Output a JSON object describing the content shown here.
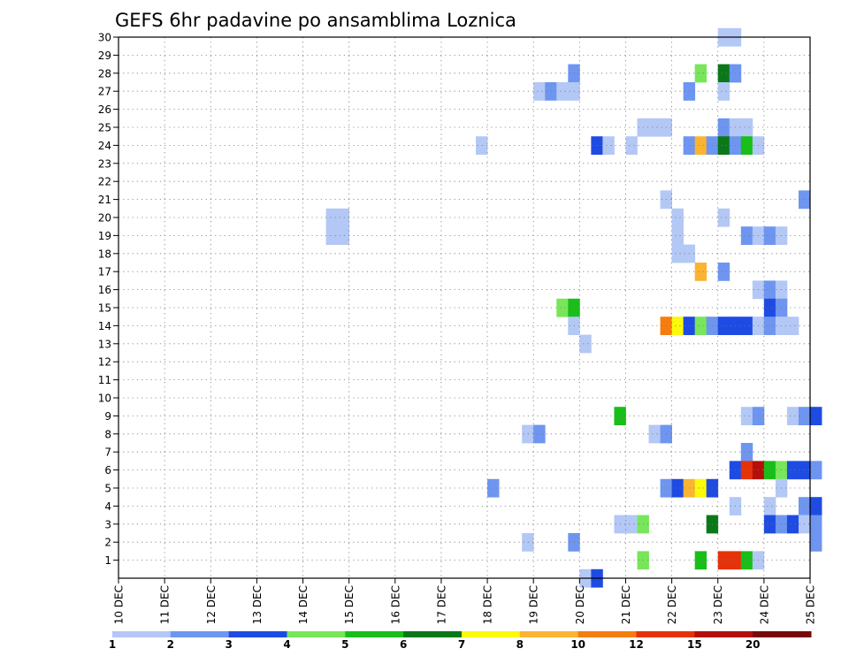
{
  "chart_data": {
    "type": "heatmap",
    "title": "GEFS 6hr padavine po ansamblima Loznica",
    "xlabel": "",
    "ylabel": "",
    "x_start": "10 DEC",
    "x_end": "25 DEC",
    "x_step_hours": 6,
    "x_ticks": [
      "10 DEC",
      "11 DEC",
      "12 DEC",
      "13 DEC",
      "14 DEC",
      "15 DEC",
      "16 DEC",
      "17 DEC",
      "18 DEC",
      "19 DEC",
      "20 DEC",
      "21 DEC",
      "22 DEC",
      "23 DEC",
      "24 DEC",
      "25 DEC"
    ],
    "y_ticks": [
      "1",
      "2",
      "3",
      "4",
      "5",
      "6",
      "7",
      "8",
      "9",
      "10",
      "11",
      "12",
      "13",
      "14",
      "15",
      "16",
      "17",
      "18",
      "19",
      "20",
      "21",
      "22",
      "23",
      "24",
      "25",
      "26",
      "27",
      "28",
      "29",
      "30"
    ],
    "ylim": [
      0,
      30
    ],
    "grid": true,
    "legend_placement": "bottom",
    "color_scale": {
      "colors": [
        "#b4c8f5",
        "#6e96f0",
        "#1e4be1",
        "#78e65a",
        "#19be19",
        "#0a7819",
        "#fafa0a",
        "#fab432",
        "#f57d0f",
        "#e6320a",
        "#b40f0a",
        "#780a0a"
      ],
      "labels": [
        "1",
        "2",
        "3",
        "4",
        "5",
        "6",
        "7",
        "8",
        "10",
        "12",
        "15",
        "20"
      ]
    },
    "cells": [
      {
        "x": "23 DEC 00Z",
        "y": 30,
        "c": 0
      },
      {
        "x": "23 DEC 06Z",
        "y": 30,
        "c": 0
      },
      {
        "x": "19 DEC 18Z",
        "y": 28,
        "c": 1
      },
      {
        "x": "22 DEC 12Z",
        "y": 28,
        "c": 3
      },
      {
        "x": "23 DEC 00Z",
        "y": 28,
        "c": 5
      },
      {
        "x": "23 DEC 06Z",
        "y": 28,
        "c": 1
      },
      {
        "x": "19 DEC 00Z",
        "y": 27,
        "c": 0
      },
      {
        "x": "19 DEC 06Z",
        "y": 27,
        "c": 1
      },
      {
        "x": "19 DEC 12Z",
        "y": 27,
        "c": 0
      },
      {
        "x": "19 DEC 18Z",
        "y": 27,
        "c": 0
      },
      {
        "x": "22 DEC 06Z",
        "y": 27,
        "c": 1
      },
      {
        "x": "23 DEC 00Z",
        "y": 27,
        "c": 0
      },
      {
        "x": "21 DEC 06Z",
        "y": 25,
        "c": 0
      },
      {
        "x": "21 DEC 12Z",
        "y": 25,
        "c": 0
      },
      {
        "x": "21 DEC 18Z",
        "y": 25,
        "c": 0
      },
      {
        "x": "23 DEC 00Z",
        "y": 25,
        "c": 1
      },
      {
        "x": "23 DEC 06Z",
        "y": 25,
        "c": 0
      },
      {
        "x": "23 DEC 12Z",
        "y": 25,
        "c": 0
      },
      {
        "x": "17 DEC 18Z",
        "y": 24,
        "c": 0
      },
      {
        "x": "20 DEC 06Z",
        "y": 24,
        "c": 2
      },
      {
        "x": "20 DEC 12Z",
        "y": 24,
        "c": 0
      },
      {
        "x": "21 DEC 00Z",
        "y": 24,
        "c": 0
      },
      {
        "x": "22 DEC 06Z",
        "y": 24,
        "c": 1
      },
      {
        "x": "22 DEC 12Z",
        "y": 24,
        "c": 7
      },
      {
        "x": "22 DEC 18Z",
        "y": 24,
        "c": 1
      },
      {
        "x": "23 DEC 00Z",
        "y": 24,
        "c": 5
      },
      {
        "x": "23 DEC 06Z",
        "y": 24,
        "c": 1
      },
      {
        "x": "23 DEC 12Z",
        "y": 24,
        "c": 4
      },
      {
        "x": "23 DEC 18Z",
        "y": 24,
        "c": 0
      },
      {
        "x": "21 DEC 18Z",
        "y": 21,
        "c": 0
      },
      {
        "x": "24 DEC 18Z",
        "y": 21,
        "c": 1
      },
      {
        "x": "14 DEC 12Z",
        "y": 20,
        "c": 0
      },
      {
        "x": "14 DEC 18Z",
        "y": 20,
        "c": 0
      },
      {
        "x": "22 DEC 00Z",
        "y": 20,
        "c": 0
      },
      {
        "x": "23 DEC 00Z",
        "y": 20,
        "c": 0
      },
      {
        "x": "14 DEC 12Z",
        "y": 19,
        "c": 0
      },
      {
        "x": "14 DEC 18Z",
        "y": 19,
        "c": 0
      },
      {
        "x": "22 DEC 00Z",
        "y": 19,
        "c": 0
      },
      {
        "x": "23 DEC 12Z",
        "y": 19,
        "c": 1
      },
      {
        "x": "23 DEC 18Z",
        "y": 19,
        "c": 0
      },
      {
        "x": "24 DEC 00Z",
        "y": 19,
        "c": 1
      },
      {
        "x": "24 DEC 06Z",
        "y": 19,
        "c": 0
      },
      {
        "x": "22 DEC 00Z",
        "y": 18,
        "c": 0
      },
      {
        "x": "22 DEC 06Z",
        "y": 18,
        "c": 0
      },
      {
        "x": "22 DEC 12Z",
        "y": 17,
        "c": 7
      },
      {
        "x": "23 DEC 00Z",
        "y": 17,
        "c": 1
      },
      {
        "x": "23 DEC 18Z",
        "y": 16,
        "c": 0
      },
      {
        "x": "24 DEC 00Z",
        "y": 16,
        "c": 1
      },
      {
        "x": "24 DEC 06Z",
        "y": 16,
        "c": 0
      },
      {
        "x": "19 DEC 12Z",
        "y": 15,
        "c": 3
      },
      {
        "x": "19 DEC 18Z",
        "y": 15,
        "c": 4
      },
      {
        "x": "24 DEC 00Z",
        "y": 15,
        "c": 2
      },
      {
        "x": "24 DEC 06Z",
        "y": 15,
        "c": 1
      },
      {
        "x": "19 DEC 18Z",
        "y": 14,
        "c": 0
      },
      {
        "x": "21 DEC 18Z",
        "y": 14,
        "c": 8
      },
      {
        "x": "22 DEC 00Z",
        "y": 14,
        "c": 6
      },
      {
        "x": "22 DEC 06Z",
        "y": 14,
        "c": 2
      },
      {
        "x": "22 DEC 12Z",
        "y": 14,
        "c": 3
      },
      {
        "x": "22 DEC 18Z",
        "y": 14,
        "c": 1
      },
      {
        "x": "23 DEC 00Z",
        "y": 14,
        "c": 2
      },
      {
        "x": "23 DEC 06Z",
        "y": 14,
        "c": 2
      },
      {
        "x": "23 DEC 12Z",
        "y": 14,
        "c": 2
      },
      {
        "x": "23 DEC 18Z",
        "y": 14,
        "c": 0
      },
      {
        "x": "24 DEC 00Z",
        "y": 14,
        "c": 1
      },
      {
        "x": "24 DEC 06Z",
        "y": 14,
        "c": 0
      },
      {
        "x": "24 DEC 12Z",
        "y": 14,
        "c": 0
      },
      {
        "x": "20 DEC 00Z",
        "y": 13,
        "c": 0
      },
      {
        "x": "20 DEC 18Z",
        "y": 9,
        "c": 4
      },
      {
        "x": "23 DEC 12Z",
        "y": 9,
        "c": 0
      },
      {
        "x": "23 DEC 18Z",
        "y": 9,
        "c": 1
      },
      {
        "x": "24 DEC 12Z",
        "y": 9,
        "c": 0
      },
      {
        "x": "24 DEC 18Z",
        "y": 9,
        "c": 1
      },
      {
        "x": "25 DEC 00Z",
        "y": 9,
        "c": 2
      },
      {
        "x": "18 DEC 18Z",
        "y": 8,
        "c": 0
      },
      {
        "x": "19 DEC 00Z",
        "y": 8,
        "c": 1
      },
      {
        "x": "21 DEC 12Z",
        "y": 8,
        "c": 0
      },
      {
        "x": "21 DEC 18Z",
        "y": 8,
        "c": 1
      },
      {
        "x": "23 DEC 12Z",
        "y": 7,
        "c": 1
      },
      {
        "x": "23 DEC 06Z",
        "y": 6,
        "c": 2
      },
      {
        "x": "23 DEC 12Z",
        "y": 6,
        "c": 9
      },
      {
        "x": "23 DEC 18Z",
        "y": 6,
        "c": 10
      },
      {
        "x": "24 DEC 00Z",
        "y": 6,
        "c": 4
      },
      {
        "x": "24 DEC 06Z",
        "y": 6,
        "c": 3
      },
      {
        "x": "24 DEC 12Z",
        "y": 6,
        "c": 2
      },
      {
        "x": "24 DEC 18Z",
        "y": 6,
        "c": 2
      },
      {
        "x": "25 DEC 00Z",
        "y": 6,
        "c": 1
      },
      {
        "x": "18 DEC 00Z",
        "y": 5,
        "c": 1
      },
      {
        "x": "21 DEC 18Z",
        "y": 5,
        "c": 1
      },
      {
        "x": "22 DEC 00Z",
        "y": 5,
        "c": 2
      },
      {
        "x": "22 DEC 06Z",
        "y": 5,
        "c": 7
      },
      {
        "x": "22 DEC 12Z",
        "y": 5,
        "c": 6
      },
      {
        "x": "22 DEC 18Z",
        "y": 5,
        "c": 2
      },
      {
        "x": "24 DEC 06Z",
        "y": 5,
        "c": 0
      },
      {
        "x": "23 DEC 06Z",
        "y": 4,
        "c": 0
      },
      {
        "x": "24 DEC 00Z",
        "y": 4,
        "c": 0
      },
      {
        "x": "24 DEC 18Z",
        "y": 4,
        "c": 1
      },
      {
        "x": "25 DEC 00Z",
        "y": 4,
        "c": 2
      },
      {
        "x": "20 DEC 18Z",
        "y": 3,
        "c": 0
      },
      {
        "x": "21 DEC 00Z",
        "y": 3,
        "c": 0
      },
      {
        "x": "21 DEC 06Z",
        "y": 3,
        "c": 3
      },
      {
        "x": "22 DEC 18Z",
        "y": 3,
        "c": 5
      },
      {
        "x": "24 DEC 00Z",
        "y": 3,
        "c": 2
      },
      {
        "x": "24 DEC 06Z",
        "y": 3,
        "c": 1
      },
      {
        "x": "24 DEC 12Z",
        "y": 3,
        "c": 2
      },
      {
        "x": "24 DEC 18Z",
        "y": 3,
        "c": 0
      },
      {
        "x": "25 DEC 00Z",
        "y": 3,
        "c": 1
      },
      {
        "x": "18 DEC 18Z",
        "y": 2,
        "c": 0
      },
      {
        "x": "19 DEC 18Z",
        "y": 2,
        "c": 1
      },
      {
        "x": "25 DEC 00Z",
        "y": 2,
        "c": 1
      },
      {
        "x": "21 DEC 06Z",
        "y": 1,
        "c": 3
      },
      {
        "x": "22 DEC 12Z",
        "y": 1,
        "c": 4
      },
      {
        "x": "23 DEC 00Z",
        "y": 1,
        "c": 9
      },
      {
        "x": "23 DEC 06Z",
        "y": 1,
        "c": 9
      },
      {
        "x": "23 DEC 12Z",
        "y": 1,
        "c": 4
      },
      {
        "x": "23 DEC 18Z",
        "y": 1,
        "c": 0
      },
      {
        "x": "20 DEC 00Z",
        "y": 0,
        "c": 0
      },
      {
        "x": "20 DEC 06Z",
        "y": 0,
        "c": 2
      }
    ]
  }
}
